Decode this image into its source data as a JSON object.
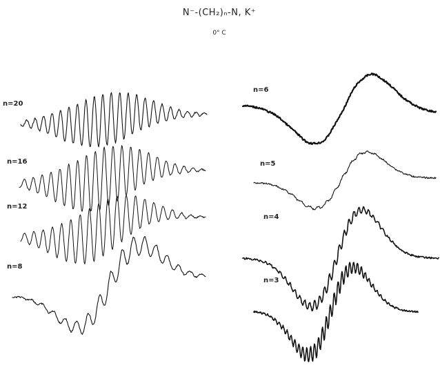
{
  "title": "N⁻-(CH₂)ₙ-N, K⁺",
  "temperature": "0° C",
  "spectra": [
    {
      "label": "n=20",
      "column": "left",
      "hyperfine": "many-sharp",
      "width": 1.1
    },
    {
      "label": "n=16",
      "column": "left",
      "hyperfine": "many-sharp",
      "width": 1.0
    },
    {
      "label": "n=12",
      "column": "left",
      "hyperfine": "many-sharp",
      "width": 1.0
    },
    {
      "label": "n=8",
      "column": "left",
      "hyperfine": "medium",
      "width": 1.1
    },
    {
      "label": "n=6",
      "column": "right",
      "hyperfine": "none",
      "width": 2.2
    },
    {
      "label": "n=5",
      "column": "right",
      "hyperfine": "faint",
      "width": 1.1
    },
    {
      "label": "n=4",
      "column": "right",
      "hyperfine": "fine",
      "width": 1.6
    },
    {
      "label": "n=3",
      "column": "right",
      "hyperfine": "fine-deep",
      "width": 1.6
    }
  ]
}
